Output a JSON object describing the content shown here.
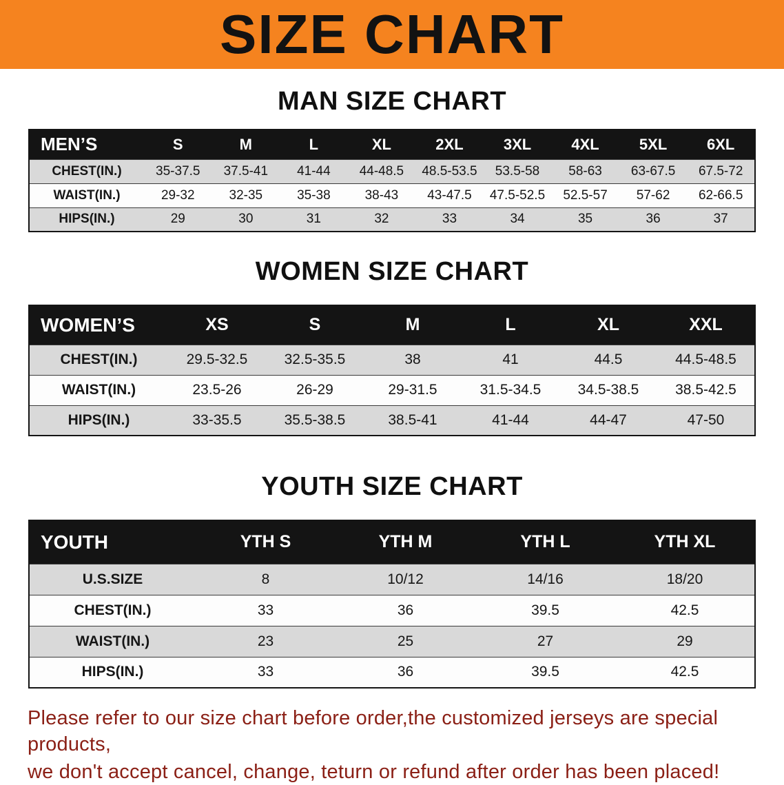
{
  "colors": {
    "banner_bg": "#f5831f",
    "header_bg": "#141414",
    "row_gray": "#d9d9d9",
    "footer_text": "#8b2016"
  },
  "banner": {
    "title": "SIZE CHART"
  },
  "sections": [
    {
      "key": "men",
      "heading": "MAN SIZE CHART",
      "table": {
        "label": "MEN’S",
        "columns": [
          "S",
          "M",
          "L",
          "XL",
          "2XL",
          "3XL",
          "4XL",
          "5XL",
          "6XL"
        ],
        "rows": [
          {
            "label": "CHEST(IN.)",
            "values": [
              "35-37.5",
              "37.5-41",
              "41-44",
              "44-48.5",
              "48.5-53.5",
              "53.5-58",
              "58-63",
              "63-67.5",
              "67.5-72"
            ]
          },
          {
            "label": "WAIST(IN.)",
            "values": [
              "29-32",
              "32-35",
              "35-38",
              "38-43",
              "43-47.5",
              "47.5-52.5",
              "52.5-57",
              "57-62",
              "62-66.5"
            ]
          },
          {
            "label": "HIPS(IN.)",
            "values": [
              "29",
              "30",
              "31",
              "32",
              "33",
              "34",
              "35",
              "36",
              "37"
            ]
          }
        ]
      }
    },
    {
      "key": "women",
      "heading": "WOMEN SIZE CHART",
      "table": {
        "label": "WOMEN’S",
        "columns": [
          "XS",
          "S",
          "M",
          "L",
          "XL",
          "XXL"
        ],
        "rows": [
          {
            "label": "CHEST(IN.)",
            "values": [
              "29.5-32.5",
              "32.5-35.5",
              "38",
              "41",
              "44.5",
              "44.5-48.5"
            ]
          },
          {
            "label": "WAIST(IN.)",
            "values": [
              "23.5-26",
              "26-29",
              "29-31.5",
              "31.5-34.5",
              "34.5-38.5",
              "38.5-42.5"
            ]
          },
          {
            "label": "HIPS(IN.)",
            "values": [
              "33-35.5",
              "35.5-38.5",
              "38.5-41",
              "41-44",
              "44-47",
              "47-50"
            ]
          }
        ]
      }
    },
    {
      "key": "youth",
      "heading": "YOUTH SIZE CHART",
      "table": {
        "label": "YOUTH",
        "columns": [
          "YTH S",
          "YTH M",
          "YTH L",
          "YTH XL"
        ],
        "rows": [
          {
            "label": "U.S.SIZE",
            "values": [
              "8",
              "10/12",
              "14/16",
              "18/20"
            ]
          },
          {
            "label": "CHEST(IN.)",
            "values": [
              "33",
              "36",
              "39.5",
              "42.5"
            ]
          },
          {
            "label": "WAIST(IN.)",
            "values": [
              "23",
              "25",
              "27",
              "29"
            ]
          },
          {
            "label": "HIPS(IN.)",
            "values": [
              "33",
              "36",
              "39.5",
              "42.5"
            ]
          }
        ]
      }
    }
  ],
  "footer": {
    "line1": "Please refer to our size chart before order,the customized jerseys are special products,",
    "line2": "we don't accept cancel, change, teturn or refund after order has been placed!"
  }
}
